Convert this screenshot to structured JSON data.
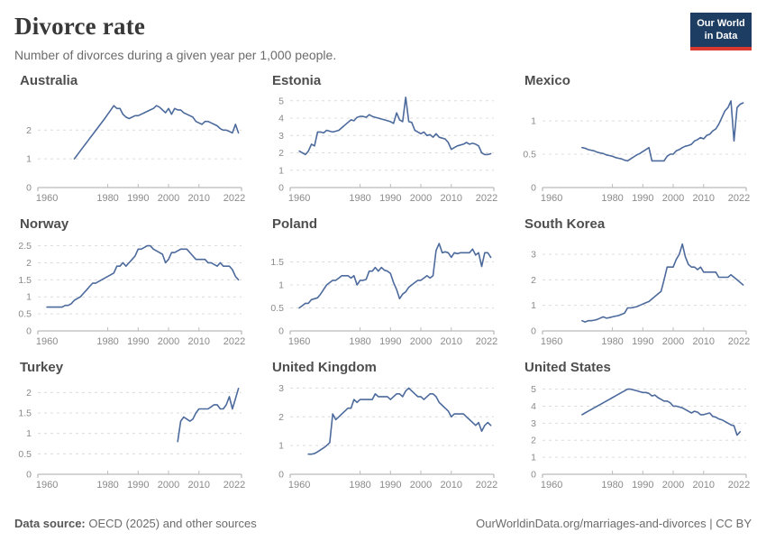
{
  "header": {
    "title": "Divorce rate",
    "subtitle": "Number of divorces during a given year per 1,000 people.",
    "logo_line1": "Our World",
    "logo_line2": "in Data"
  },
  "footer": {
    "source_label": "Data source:",
    "source_text": " OECD (2025) and other sources",
    "link_text": "OurWorldinData.org/marriages-and-divorces",
    "license_text": "| CC BY"
  },
  "colors": {
    "line": "#4c6a9c",
    "grid": "#dcdcdc",
    "axis": "#a8a8a8",
    "tick": "#bbbbbb",
    "tick_label": "#8a8a8a",
    "logo_bg": "#1d3d63",
    "logo_red": "#d93a2d"
  },
  "chart_defaults": {
    "xlim": [
      1957,
      2024
    ],
    "xticks": [
      1960,
      1980,
      1990,
      2000,
      2010,
      2022
    ],
    "grid": "horizontal-dashed",
    "legend": "none"
  },
  "chart_data": [
    {
      "type": "line",
      "title": "Australia",
      "start_year": 1969,
      "end_year": 2023,
      "ylim": [
        0,
        3.2
      ],
      "yticks": [
        0,
        1,
        2
      ],
      "values": [
        1.0,
        1.14,
        1.28,
        1.42,
        1.56,
        1.7,
        1.84,
        1.98,
        2.12,
        2.26,
        2.4,
        2.55,
        2.7,
        2.85,
        2.75,
        2.75,
        2.55,
        2.45,
        2.4,
        2.45,
        2.5,
        2.5,
        2.55,
        2.6,
        2.65,
        2.7,
        2.75,
        2.85,
        2.8,
        2.7,
        2.6,
        2.75,
        2.55,
        2.75,
        2.7,
        2.7,
        2.6,
        2.55,
        2.5,
        2.45,
        2.3,
        2.25,
        2.2,
        2.3,
        2.3,
        2.25,
        2.2,
        2.15,
        2.05,
        2.0,
        2.0,
        1.95,
        1.9,
        2.2,
        1.9
      ]
    },
    {
      "type": "line",
      "title": "Estonia",
      "start_year": 1960,
      "end_year": 2023,
      "ylim": [
        0,
        5.3
      ],
      "yticks": [
        0,
        1,
        2,
        3,
        4,
        5
      ],
      "values": [
        2.1,
        2.0,
        1.9,
        2.1,
        2.5,
        2.4,
        3.2,
        3.2,
        3.15,
        3.3,
        3.25,
        3.2,
        3.25,
        3.3,
        3.45,
        3.6,
        3.75,
        3.9,
        3.85,
        4.05,
        4.1,
        4.1,
        4.05,
        4.2,
        4.1,
        4.05,
        4.0,
        3.95,
        3.9,
        3.85,
        3.8,
        3.7,
        4.3,
        3.9,
        3.8,
        5.2,
        3.8,
        3.75,
        3.3,
        3.2,
        3.1,
        3.2,
        3.0,
        3.05,
        2.9,
        3.1,
        2.9,
        2.85,
        2.8,
        2.6,
        2.2,
        2.3,
        2.4,
        2.45,
        2.5,
        2.6,
        2.5,
        2.55,
        2.5,
        2.4,
        2.0,
        1.9,
        1.9,
        1.95
      ]
    },
    {
      "type": "line",
      "title": "Mexico",
      "start_year": 1970,
      "end_year": 2023,
      "ylim": [
        0,
        1.38
      ],
      "yticks": [
        0,
        0.5,
        1
      ],
      "values": [
        0.6,
        0.59,
        0.57,
        0.56,
        0.55,
        0.53,
        0.52,
        0.51,
        0.49,
        0.48,
        0.47,
        0.45,
        0.44,
        0.43,
        0.41,
        0.4,
        0.43,
        0.46,
        0.49,
        0.51,
        0.54,
        0.57,
        0.6,
        0.4,
        0.4,
        0.4,
        0.4,
        0.4,
        0.47,
        0.5,
        0.5,
        0.55,
        0.57,
        0.6,
        0.62,
        0.63,
        0.65,
        0.7,
        0.72,
        0.75,
        0.73,
        0.78,
        0.8,
        0.85,
        0.88,
        0.95,
        1.05,
        1.15,
        1.2,
        1.3,
        0.7,
        1.2,
        1.25,
        1.27
      ]
    },
    {
      "type": "line",
      "title": "Norway",
      "start_year": 1960,
      "end_year": 2023,
      "ylim": [
        0,
        2.7
      ],
      "yticks": [
        0,
        0.5,
        1,
        1.5,
        2,
        2.5
      ],
      "values": [
        0.7,
        0.7,
        0.7,
        0.7,
        0.7,
        0.7,
        0.75,
        0.75,
        0.8,
        0.9,
        0.95,
        1.0,
        1.1,
        1.2,
        1.3,
        1.4,
        1.4,
        1.45,
        1.5,
        1.55,
        1.6,
        1.65,
        1.7,
        1.9,
        1.9,
        2.0,
        1.9,
        2.0,
        2.1,
        2.2,
        2.4,
        2.4,
        2.45,
        2.5,
        2.5,
        2.4,
        2.35,
        2.3,
        2.25,
        2.0,
        2.1,
        2.3,
        2.3,
        2.35,
        2.4,
        2.4,
        2.4,
        2.3,
        2.2,
        2.1,
        2.1,
        2.1,
        2.1,
        2.0,
        2.0,
        1.95,
        1.9,
        2.0,
        1.9,
        1.9,
        1.9,
        1.8,
        1.6,
        1.5
      ]
    },
    {
      "type": "line",
      "title": "Poland",
      "start_year": 1960,
      "end_year": 2023,
      "ylim": [
        0,
        2.0
      ],
      "yticks": [
        0,
        0.5,
        1,
        1.5
      ],
      "values": [
        0.5,
        0.55,
        0.6,
        0.6,
        0.68,
        0.7,
        0.72,
        0.8,
        0.9,
        1.0,
        1.05,
        1.1,
        1.1,
        1.15,
        1.2,
        1.2,
        1.2,
        1.15,
        1.2,
        1.0,
        1.1,
        1.1,
        1.12,
        1.3,
        1.3,
        1.38,
        1.3,
        1.38,
        1.32,
        1.3,
        1.25,
        1.05,
        0.9,
        0.7,
        0.8,
        0.85,
        0.95,
        1.0,
        1.05,
        1.1,
        1.1,
        1.15,
        1.2,
        1.15,
        1.2,
        1.75,
        1.9,
        1.7,
        1.72,
        1.7,
        1.6,
        1.7,
        1.68,
        1.7,
        1.7,
        1.7,
        1.7,
        1.78,
        1.65,
        1.7,
        1.4,
        1.7,
        1.7,
        1.6
      ]
    },
    {
      "type": "line",
      "title": "South Korea",
      "start_year": 1970,
      "end_year": 2023,
      "ylim": [
        0,
        3.6
      ],
      "yticks": [
        0,
        1,
        2,
        3
      ],
      "values": [
        0.4,
        0.35,
        0.4,
        0.4,
        0.42,
        0.45,
        0.5,
        0.55,
        0.5,
        0.52,
        0.55,
        0.58,
        0.6,
        0.65,
        0.7,
        0.9,
        0.9,
        0.92,
        0.95,
        1.0,
        1.05,
        1.1,
        1.15,
        1.25,
        1.35,
        1.45,
        1.55,
        2.0,
        2.5,
        2.5,
        2.5,
        2.8,
        3.0,
        3.4,
        2.9,
        2.6,
        2.5,
        2.5,
        2.4,
        2.5,
        2.3,
        2.3,
        2.3,
        2.3,
        2.3,
        2.1,
        2.1,
        2.1,
        2.1,
        2.2,
        2.1,
        2.0,
        1.9,
        1.8
      ]
    },
    {
      "type": "line",
      "title": "Turkey",
      "start_year": 2003,
      "end_year": 2023,
      "ylim": [
        0,
        2.25
      ],
      "yticks": [
        0,
        0.5,
        1,
        1.5,
        2
      ],
      "values": [
        0.8,
        1.3,
        1.4,
        1.35,
        1.3,
        1.35,
        1.5,
        1.6,
        1.6,
        1.6,
        1.6,
        1.65,
        1.7,
        1.7,
        1.6,
        1.6,
        1.7,
        1.9,
        1.6,
        1.85,
        2.1
      ]
    },
    {
      "type": "line",
      "title": "United Kingdom",
      "start_year": 1963,
      "end_year": 2023,
      "ylim": [
        0,
        3.2
      ],
      "yticks": [
        0,
        1,
        2,
        3
      ],
      "values": [
        0.7,
        0.7,
        0.72,
        0.78,
        0.85,
        0.92,
        1.0,
        1.1,
        2.1,
        1.9,
        2.0,
        2.1,
        2.2,
        2.3,
        2.3,
        2.6,
        2.5,
        2.6,
        2.6,
        2.6,
        2.6,
        2.6,
        2.8,
        2.7,
        2.7,
        2.7,
        2.7,
        2.6,
        2.7,
        2.8,
        2.8,
        2.7,
        2.9,
        3.0,
        2.9,
        2.8,
        2.7,
        2.7,
        2.6,
        2.7,
        2.8,
        2.8,
        2.7,
        2.5,
        2.4,
        2.3,
        2.2,
        2.0,
        2.1,
        2.1,
        2.1,
        2.1,
        2.0,
        1.9,
        1.8,
        1.7,
        1.8,
        1.5,
        1.7,
        1.8,
        1.7
      ]
    },
    {
      "type": "line",
      "title": "United States",
      "start_year": 1970,
      "end_year": 2022,
      "ylim": [
        0,
        5.4
      ],
      "yticks": [
        0,
        1,
        2,
        3,
        4,
        5
      ],
      "values": [
        3.5,
        3.6,
        3.7,
        3.8,
        3.9,
        4.0,
        4.1,
        4.2,
        4.3,
        4.4,
        4.5,
        4.6,
        4.7,
        4.8,
        4.9,
        5.0,
        5.0,
        4.95,
        4.9,
        4.85,
        4.8,
        4.8,
        4.75,
        4.6,
        4.65,
        4.5,
        4.4,
        4.3,
        4.3,
        4.2,
        4.0,
        4.0,
        3.95,
        3.9,
        3.8,
        3.7,
        3.6,
        3.7,
        3.65,
        3.5,
        3.5,
        3.55,
        3.6,
        3.4,
        3.35,
        3.25,
        3.2,
        3.1,
        3.0,
        2.9,
        2.85,
        2.3,
        2.5
      ]
    }
  ]
}
